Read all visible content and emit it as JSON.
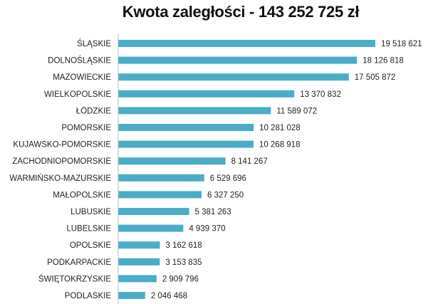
{
  "chart_data": {
    "type": "bar",
    "orientation": "horizontal",
    "title": "Kwota zaległości - 143 252 725 zł",
    "categories": [
      "ŚLĄSKIE",
      "DOLNOŚLĄSKIE",
      "MAZOWIECKIE",
      "WIELKOPOLSKIE",
      "ŁÓDZKIE",
      "POMORSKIE",
      "KUJAWSKO-POMORSKIE",
      "ZACHODNIOPOMORSKIE",
      "WARMIŃSKO-MAZURSKIE",
      "MAŁOPOLSKIE",
      "LUBUSKIE",
      "LUBELSKIE",
      "OPOLSKIE",
      "PODKARPACKIE",
      "ŚWIĘTOKRZYSKIE",
      "PODLASKIE"
    ],
    "values": [
      19518621,
      18126818,
      17505872,
      13370832,
      11589072,
      10281028,
      10268918,
      8141267,
      6529696,
      6327250,
      5381263,
      4939370,
      3162618,
      3153835,
      2909796,
      2046468
    ],
    "data_labels": [
      "19 518 621",
      "18 126 818",
      "17 505 872",
      "13 370 832",
      "11 589 072",
      "10 281 028",
      "10 268 918",
      "8 141 267",
      "6 529 696",
      "6 327 250",
      "5 381 263",
      "4 939 370",
      "3 162 618",
      "3 153 835",
      "2 909 796",
      "2 046 468"
    ],
    "bar_color": "#4BACC6",
    "grid": false,
    "legend": "none"
  }
}
